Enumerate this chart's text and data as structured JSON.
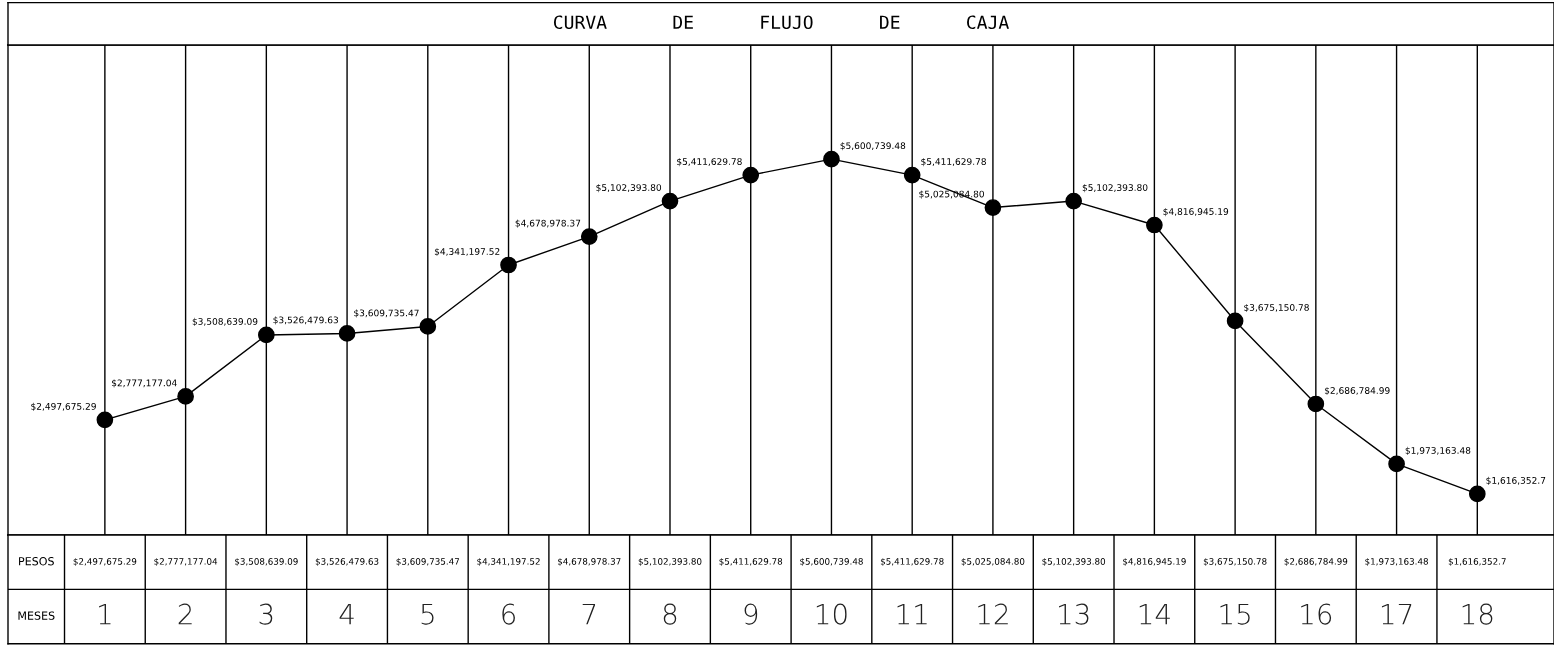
{
  "chart_data": {
    "type": "line",
    "title": "CURVA DE FLUJO DE CAJA",
    "xlabel": "MESES",
    "ylabel": "PESOS",
    "categories": [
      "1",
      "2",
      "3",
      "4",
      "5",
      "6",
      "7",
      "8",
      "9",
      "10",
      "11",
      "12",
      "13",
      "14",
      "15",
      "16",
      "17",
      "18"
    ],
    "series": [
      {
        "color": "#000000",
        "values": [
          2497675.29,
          2777177.04,
          3508639.09,
          3526479.63,
          3609735.47,
          4341197.52,
          4678978.37,
          5102393.8,
          5411629.78,
          5600739.48,
          5411629.78,
          5025084.8,
          5102393.8,
          4816945.19,
          3675150.78,
          2686784.99,
          1973163.48,
          1616352.7
        ],
        "value_labels": [
          "$2,497,675.29",
          "$2,777,177.04",
          "$3,508,639.09",
          "$3,526,479.63",
          "$3,609,735.47",
          "$4,341,197.52",
          "$4,678,978.37",
          "$5,102,393.80",
          "$5,411,629.78",
          "$5,600,739.48",
          "$5,411,629.78",
          "$5,025,084.80",
          "$5,102,393.80",
          "$4,816,945.19",
          "$3,675,150.78",
          "$2,686,784.99",
          "$1,973,163.48",
          "$1,616,352.7"
        ]
      }
    ],
    "marker": "circle",
    "line_style": "solid",
    "grid": "x"
  }
}
